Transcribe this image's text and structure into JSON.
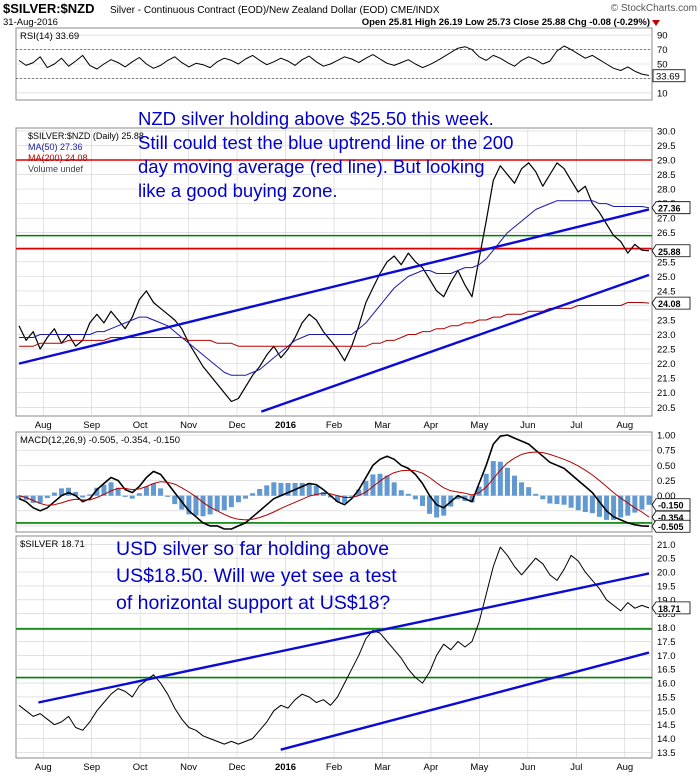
{
  "header": {
    "symbol": "$SILVER:$NZD",
    "description": "Silver - Continuous Contract (EOD)/New Zealand Dollar (EOD) CME/INDX",
    "watermark": "© StockCharts.com",
    "date": "31-Aug-2016",
    "ohlc": "Open 25.81  High 26.19  Low 25.73  Close 25.88  Chg -0.08 (-0.29%)"
  },
  "colors": {
    "price": "#000000",
    "ma50": "#1a1aa6",
    "ma200": "#b30000",
    "trend_line": "#0b0bd6",
    "red_line": "#e00000",
    "green_line": "#008000",
    "macd_hist": "#3a7fc4",
    "annotation": "#0000c8",
    "grid": "#d0d0d0"
  },
  "chart_data": [
    {
      "type": "line",
      "title": "RSI(14) 33.69",
      "ylim": [
        0,
        100
      ],
      "y_ticks": [
        "90",
        "70",
        "50",
        "30",
        "10"
      ],
      "reference_levels": [
        70,
        30
      ],
      "last_value": 33.69,
      "last_label": "33.69",
      "series": [
        {
          "name": "RSI(14)",
          "values": [
            55,
            48,
            52,
            60,
            45,
            50,
            58,
            47,
            54,
            62,
            48,
            43,
            50,
            56,
            52,
            46,
            53,
            59,
            50,
            44,
            48,
            55,
            60,
            52,
            46,
            51,
            49,
            45,
            53,
            58,
            55,
            50,
            57,
            62,
            55,
            49,
            53,
            58,
            54,
            48,
            56,
            61,
            53,
            47,
            50,
            55,
            60,
            57,
            52,
            58,
            63,
            57,
            51,
            48,
            52,
            56,
            50,
            45,
            49,
            54,
            60,
            66,
            72,
            74,
            70,
            60,
            55,
            62,
            58,
            52,
            47,
            55,
            60,
            56,
            50,
            54,
            68,
            75,
            70,
            64,
            58,
            62,
            56,
            50,
            44,
            41,
            46,
            40,
            36,
            34
          ]
        }
      ]
    },
    {
      "type": "line",
      "title": "$SILVER:$NZD (Daily) 25.88",
      "legend": [
        "$SILVER:$NZD (Daily) 25.88",
        "MA(50) 27.36",
        "MA(200) 24.08",
        "Volume undef"
      ],
      "x_tick_labels": [
        "Aug",
        "Sep",
        "Oct",
        "Nov",
        "Dec",
        "2016",
        "Feb",
        "Mar",
        "Apr",
        "May",
        "Jun",
        "Jul",
        "Aug"
      ],
      "y_ticks": [
        "30.0",
        "29.5",
        "29.0",
        "28.5",
        "28.0",
        "27.5",
        "27.0",
        "26.5",
        "26.0",
        "25.5",
        "25.0",
        "24.5",
        "24.0",
        "23.5",
        "23.0",
        "22.5",
        "22.0",
        "21.5",
        "21.0",
        "20.5"
      ],
      "ylim": [
        20.2,
        30.1
      ],
      "price_tags": [
        {
          "value": 27.36,
          "label": "27.36"
        },
        {
          "value": 25.88,
          "label": "25.88"
        },
        {
          "value": 24.08,
          "label": "24.08"
        }
      ],
      "horizontal_lines": [
        {
          "value": 29.0,
          "color": "red"
        },
        {
          "value": 25.95,
          "color": "red"
        },
        {
          "value": 26.4,
          "color": "green"
        }
      ],
      "trend_lines": [
        {
          "from": [
            0.0,
            22.0
          ],
          "to": [
            13.0,
            27.3
          ]
        },
        {
          "from": [
            5.0,
            20.35
          ],
          "to": [
            13.0,
            25.05
          ]
        }
      ],
      "series": [
        {
          "name": "$SILVER:$NZD (Daily) 25.88",
          "values": [
            23.3,
            22.8,
            23.1,
            22.5,
            22.9,
            23.2,
            22.7,
            23.0,
            22.6,
            22.8,
            23.4,
            23.7,
            23.4,
            23.8,
            23.5,
            23.2,
            23.6,
            24.2,
            24.5,
            24.1,
            23.9,
            23.7,
            23.5,
            23.2,
            22.7,
            22.3,
            21.9,
            21.6,
            21.3,
            21.0,
            20.7,
            20.8,
            21.2,
            21.6,
            21.9,
            22.3,
            22.6,
            22.2,
            22.5,
            22.9,
            23.4,
            23.7,
            23.5,
            23.1,
            22.8,
            22.5,
            22.1,
            22.6,
            23.3,
            24.1,
            24.6,
            25.1,
            25.5,
            25.7,
            25.4,
            25.8,
            25.5,
            25.3,
            24.9,
            24.5,
            24.3,
            24.8,
            25.2,
            24.7,
            24.3,
            25.6,
            26.9,
            28.3,
            28.8,
            28.5,
            28.2,
            28.7,
            28.9,
            28.6,
            28.1,
            28.5,
            28.9,
            28.7,
            28.3,
            27.9,
            28.1,
            27.5,
            27.2,
            26.8,
            26.4,
            26.2,
            25.8,
            26.1,
            25.9,
            25.88
          ]
        },
        {
          "name": "MA(50) 27.36",
          "values": [
            22.9,
            22.9,
            22.9,
            23.0,
            23.0,
            23.0,
            23.0,
            23.0,
            23.0,
            23.0,
            23.0,
            23.1,
            23.1,
            23.2,
            23.3,
            23.4,
            23.5,
            23.6,
            23.6,
            23.5,
            23.4,
            23.3,
            23.1,
            22.9,
            22.7,
            22.5,
            22.3,
            22.1,
            21.9,
            21.7,
            21.6,
            21.6,
            21.6,
            21.7,
            21.8,
            22.0,
            22.2,
            22.4,
            22.6,
            22.8,
            22.9,
            23.0,
            23.0,
            23.0,
            23.0,
            23.0,
            23.0,
            23.0,
            23.2,
            23.4,
            23.7,
            24.0,
            24.3,
            24.6,
            24.8,
            25.0,
            25.1,
            25.2,
            25.2,
            25.1,
            25.1,
            25.1,
            25.2,
            25.3,
            25.3,
            25.4,
            25.6,
            25.9,
            26.2,
            26.5,
            26.7,
            26.9,
            27.1,
            27.3,
            27.4,
            27.5,
            27.6,
            27.6,
            27.6,
            27.6,
            27.6,
            27.6,
            27.5,
            27.5,
            27.4,
            27.4,
            27.4,
            27.4,
            27.4,
            27.36
          ]
        },
        {
          "name": "MA(200) 24.08",
          "values": [
            22.6,
            22.6,
            22.6,
            22.7,
            22.7,
            22.7,
            22.7,
            22.8,
            22.8,
            22.8,
            22.8,
            22.8,
            22.8,
            22.9,
            22.9,
            22.9,
            22.9,
            22.9,
            22.9,
            22.9,
            22.9,
            22.9,
            22.9,
            22.9,
            22.8,
            22.8,
            22.8,
            22.8,
            22.7,
            22.7,
            22.7,
            22.6,
            22.6,
            22.6,
            22.6,
            22.6,
            22.6,
            22.6,
            22.6,
            22.6,
            22.6,
            22.6,
            22.6,
            22.6,
            22.6,
            22.6,
            22.6,
            22.6,
            22.6,
            22.6,
            22.7,
            22.7,
            22.8,
            22.8,
            22.9,
            23.0,
            23.0,
            23.1,
            23.1,
            23.2,
            23.2,
            23.3,
            23.3,
            23.4,
            23.4,
            23.5,
            23.5,
            23.6,
            23.6,
            23.7,
            23.7,
            23.7,
            23.8,
            23.8,
            23.8,
            23.9,
            23.9,
            23.9,
            23.9,
            24.0,
            24.0,
            24.0,
            24.0,
            24.0,
            24.0,
            24.0,
            24.1,
            24.1,
            24.1,
            24.08
          ]
        }
      ]
    },
    {
      "type": "line",
      "title": "MACD(12,26,9) -0.505, -0.354, -0.150",
      "y_ticks": [
        "1.00",
        "0.75",
        "0.50",
        "0.25",
        "0.00",
        "-0.25",
        "-0.50"
      ],
      "ylim": [
        -0.6,
        1.05
      ],
      "price_tags": [
        {
          "value": -0.15,
          "label": "-0.150"
        },
        {
          "value": -0.354,
          "label": "-0.354"
        },
        {
          "value": -0.505,
          "label": "-0.505"
        }
      ],
      "horizontal_lines": [
        {
          "value": -0.45,
          "color": "green"
        }
      ],
      "series": [
        {
          "name": "MACD",
          "values": [
            -0.05,
            -0.1,
            -0.2,
            -0.25,
            -0.2,
            -0.1,
            0.0,
            0.05,
            0.0,
            -0.1,
            -0.05,
            0.1,
            0.2,
            0.3,
            0.25,
            0.1,
            0.05,
            0.15,
            0.3,
            0.4,
            0.35,
            0.2,
            0.05,
            -0.1,
            -0.25,
            -0.35,
            -0.45,
            -0.5,
            -0.5,
            -0.55,
            -0.55,
            -0.5,
            -0.45,
            -0.35,
            -0.25,
            -0.15,
            -0.05,
            0.0,
            0.05,
            0.1,
            0.15,
            0.2,
            0.18,
            0.1,
            0.0,
            -0.1,
            -0.15,
            -0.05,
            0.1,
            0.3,
            0.5,
            0.6,
            0.65,
            0.6,
            0.5,
            0.45,
            0.35,
            0.2,
            0.0,
            -0.15,
            -0.2,
            -0.1,
            0.0,
            -0.05,
            -0.1,
            0.2,
            0.5,
            0.85,
            0.98,
            1.0,
            0.95,
            0.9,
            0.85,
            0.75,
            0.65,
            0.55,
            0.5,
            0.45,
            0.35,
            0.25,
            0.15,
            0.05,
            -0.1,
            -0.25,
            -0.35,
            -0.4,
            -0.45,
            -0.48,
            -0.5,
            -0.505
          ]
        },
        {
          "name": "Signal",
          "values": [
            0.0,
            -0.03,
            -0.08,
            -0.13,
            -0.16,
            -0.15,
            -0.12,
            -0.08,
            -0.06,
            -0.07,
            -0.07,
            -0.03,
            0.02,
            0.08,
            0.12,
            0.12,
            0.1,
            0.11,
            0.15,
            0.2,
            0.23,
            0.22,
            0.19,
            0.13,
            0.06,
            -0.02,
            -0.11,
            -0.19,
            -0.25,
            -0.31,
            -0.36,
            -0.39,
            -0.4,
            -0.39,
            -0.36,
            -0.32,
            -0.27,
            -0.21,
            -0.16,
            -0.11,
            -0.06,
            -0.01,
            0.02,
            0.04,
            0.03,
            0.0,
            -0.03,
            -0.03,
            0.0,
            0.06,
            0.15,
            0.24,
            0.32,
            0.38,
            0.41,
            0.42,
            0.41,
            0.37,
            0.3,
            0.21,
            0.13,
            0.08,
            0.06,
            0.04,
            0.01,
            0.05,
            0.14,
            0.28,
            0.42,
            0.54,
            0.62,
            0.68,
            0.71,
            0.72,
            0.71,
            0.68,
            0.64,
            0.6,
            0.55,
            0.49,
            0.42,
            0.34,
            0.25,
            0.15,
            0.05,
            -0.04,
            -0.12,
            -0.2,
            -0.27,
            -0.354
          ]
        }
      ]
    },
    {
      "type": "line",
      "title": "$SILVER 18.71",
      "x_tick_labels": [
        "Aug",
        "Sep",
        "Oct",
        "Nov",
        "Dec",
        "2016",
        "Feb",
        "Mar",
        "Apr",
        "May",
        "Jun",
        "Jul",
        "Aug"
      ],
      "y_ticks": [
        "21.0",
        "20.5",
        "20.0",
        "19.5",
        "19.0",
        "18.5",
        "18.0",
        "17.5",
        "17.0",
        "16.5",
        "16.0",
        "15.5",
        "15.0",
        "14.5",
        "14.0",
        "13.5"
      ],
      "ylim": [
        13.3,
        21.3
      ],
      "price_tags": [
        {
          "value": 18.71,
          "label": "18.71"
        }
      ],
      "horizontal_lines": [
        {
          "value": 17.95,
          "color": "green"
        },
        {
          "value": 16.2,
          "color": "green"
        }
      ],
      "trend_lines": [
        {
          "from": [
            0.4,
            15.3
          ],
          "to": [
            13.0,
            19.95
          ]
        },
        {
          "from": [
            5.4,
            13.6
          ],
          "to": [
            13.0,
            17.1
          ]
        }
      ],
      "series": [
        {
          "name": "$SILVER 18.71",
          "values": [
            15.2,
            15.0,
            14.8,
            14.9,
            14.7,
            14.5,
            14.6,
            14.8,
            14.4,
            14.3,
            14.6,
            15.0,
            15.3,
            15.6,
            15.8,
            15.7,
            15.5,
            15.9,
            16.1,
            16.3,
            16.0,
            15.6,
            15.1,
            14.7,
            14.4,
            14.3,
            14.1,
            14.0,
            13.9,
            13.8,
            13.9,
            13.8,
            13.9,
            14.0,
            14.3,
            14.6,
            15.0,
            15.2,
            15.1,
            15.4,
            15.6,
            15.5,
            15.3,
            15.4,
            15.2,
            15.5,
            16.0,
            16.5,
            17.0,
            17.6,
            17.9,
            17.8,
            17.5,
            17.2,
            16.9,
            16.5,
            16.2,
            16.0,
            16.4,
            17.0,
            17.4,
            17.2,
            17.5,
            17.3,
            17.5,
            18.2,
            19.2,
            20.2,
            20.9,
            20.6,
            20.2,
            19.9,
            20.2,
            20.5,
            20.3,
            19.9,
            19.7,
            20.1,
            20.6,
            20.4,
            20.0,
            19.7,
            19.4,
            19.0,
            18.8,
            18.6,
            18.9,
            18.7,
            18.8,
            18.71
          ]
        }
      ]
    }
  ],
  "annotations": {
    "nzd_lines": [
      "NZD silver holding above $25.50 this week.",
      "Still could test the blue uptrend line or the 200",
      "day moving average (red line). But looking",
      "like a good buying zone."
    ],
    "usd_lines": [
      "USD silver so far holding above",
      "US$18.50. Will we yet see a test",
      "of horizontal support at US$18?"
    ]
  }
}
